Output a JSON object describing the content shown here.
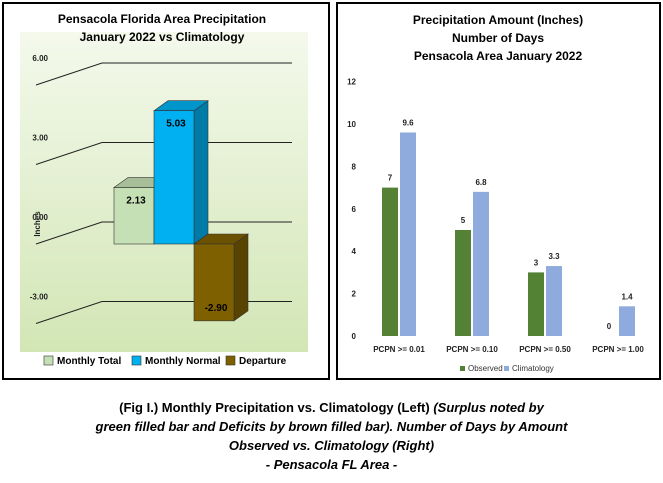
{
  "chart_data": [
    {
      "type": "bar",
      "title_lines": [
        "Pensacola Florida Area Precipitation",
        "January 2022 vs Climatology"
      ],
      "ylabel": "Inches",
      "ylim": [
        -3,
        6
      ],
      "yticks": [
        "-3.00",
        "0.00",
        "3.00",
        "6.00"
      ],
      "grid": true,
      "series": [
        {
          "name": "Monthly Total",
          "value": 2.13,
          "label": "2.13",
          "color": "#c5e0b4"
        },
        {
          "name": "Monthly Normal",
          "value": 5.03,
          "label": "5.03",
          "color": "#00b0f0"
        },
        {
          "name": "Departure",
          "value": -2.9,
          "label": "-2.90",
          "color": "#7f6000"
        }
      ],
      "legend_position": "bottom"
    },
    {
      "type": "bar",
      "title_lines": [
        "Precipitation Amount (Inches)",
        "Number of Days",
        "Pensacola Area January 2022"
      ],
      "ylim": [
        0,
        12
      ],
      "yticks": [
        "0",
        "2",
        "4",
        "6",
        "8",
        "10",
        "12"
      ],
      "grid": false,
      "categories": [
        "PCPN >= 0.01",
        "PCPN >= 0.10",
        "PCPN >= 0.50",
        "PCPN >= 1.00"
      ],
      "series": [
        {
          "name": "Observed",
          "values": [
            7,
            5,
            3,
            0
          ],
          "labels": [
            "7",
            "5",
            "3",
            "0"
          ],
          "color": "#548235"
        },
        {
          "name": "Climatology",
          "values": [
            9.6,
            6.8,
            3.3,
            1.4
          ],
          "labels": [
            "9.6",
            "6.8",
            "3.3",
            "1.4"
          ],
          "color": "#8faadc"
        }
      ],
      "legend_position": "bottom"
    }
  ],
  "caption": {
    "line1_normal": "(Fig I.) Monthly Precipitation vs. Climatology (Left) ",
    "line1_italic": "(Surplus noted by",
    "line2": "green filled bar and Deficits by brown filled bar). Number of Days by Amount",
    "line3": "Observed vs. Climatology (Right)",
    "line4": "- Pensacola FL Area -"
  }
}
